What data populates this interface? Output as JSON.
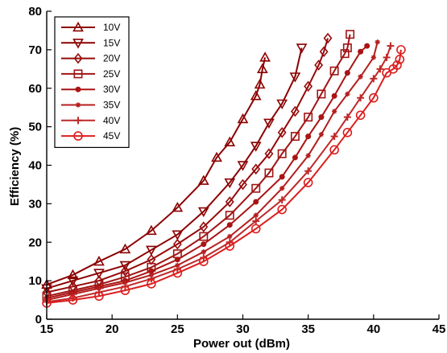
{
  "chart_data": {
    "type": "line",
    "title": "",
    "xlabel": "Power out (dBm)",
    "ylabel": "Efficiency (%)",
    "xlim": [
      15,
      45
    ],
    "ylim": [
      0,
      80
    ],
    "xticks": [
      15,
      20,
      25,
      30,
      35,
      40,
      45
    ],
    "yticks": [
      0,
      10,
      20,
      30,
      40,
      50,
      60,
      70,
      80
    ],
    "grid": false,
    "legend_position": "top-left",
    "series": [
      {
        "name": "10V",
        "marker": "triangle-up",
        "color": "#8b0000",
        "x": [
          15,
          17,
          19,
          21,
          23,
          25,
          27,
          28,
          29,
          30,
          31,
          31.3,
          31.5,
          31.7
        ],
        "y": [
          9,
          11.5,
          15,
          18.2,
          23,
          29,
          36,
          42,
          46,
          52,
          58,
          61,
          65,
          68
        ]
      },
      {
        "name": "15V",
        "marker": "triangle-down",
        "color": "#8b0000",
        "x": [
          15,
          17,
          19,
          21,
          23,
          25,
          27,
          29,
          30,
          31,
          32,
          33,
          34,
          34.5
        ],
        "y": [
          8,
          10,
          12,
          14,
          18,
          22,
          28,
          35.5,
          40,
          45,
          51,
          56,
          63,
          70.5
        ]
      },
      {
        "name": "20V",
        "marker": "diamond",
        "color": "#960a0a",
        "x": [
          15,
          17,
          19,
          21,
          23,
          25,
          27,
          29,
          30,
          31,
          32,
          33,
          34,
          35,
          35.8,
          36.2,
          36.5
        ],
        "y": [
          7,
          8.5,
          10,
          12.5,
          15.5,
          19.5,
          24,
          30.5,
          35,
          39,
          43,
          48.5,
          54,
          60.5,
          66,
          69.5,
          73
        ]
      },
      {
        "name": "25V",
        "marker": "square",
        "color": "#a01414",
        "x": [
          15,
          17,
          19,
          21,
          23,
          25,
          27,
          29,
          31,
          32,
          33,
          34,
          35,
          36,
          37,
          37.8,
          38,
          38.2
        ],
        "y": [
          6,
          7.5,
          9,
          11,
          13.5,
          17,
          21.5,
          27,
          34,
          38,
          43,
          47.5,
          52.5,
          58.5,
          64.5,
          69,
          70.5,
          74
        ]
      },
      {
        "name": "30V",
        "marker": "circle-filled",
        "color": "#aa1414",
        "x": [
          15,
          17,
          19,
          21,
          23,
          25,
          27,
          29,
          31,
          33,
          34,
          35,
          36,
          37,
          38,
          39,
          39.5
        ],
        "y": [
          5.5,
          7,
          8.5,
          10,
          12.5,
          15.5,
          19.5,
          24.5,
          30.5,
          37,
          42,
          47.5,
          52.5,
          58,
          64,
          69.5,
          71
        ]
      },
      {
        "name": "35V",
        "marker": "star",
        "color": "#b41e1e",
        "x": [
          15,
          17,
          19,
          21,
          23,
          25,
          27,
          29,
          31,
          33,
          35,
          36,
          37,
          38,
          39,
          40,
          40.3
        ],
        "y": [
          5,
          6.5,
          8,
          9.5,
          11.5,
          14,
          17.5,
          21.5,
          27,
          34,
          42.5,
          48,
          54,
          58.5,
          63,
          68,
          72
        ]
      },
      {
        "name": "40V",
        "marker": "plus",
        "color": "#be2828",
        "x": [
          15,
          17,
          19,
          21,
          23,
          25,
          27,
          29,
          31,
          33,
          35,
          37,
          38,
          39,
          40,
          40.5,
          41,
          41.3
        ],
        "y": [
          4.5,
          5.5,
          7,
          8.5,
          10.5,
          13,
          16,
          20,
          25.5,
          31,
          38.5,
          47.5,
          52.5,
          57.5,
          62.5,
          65,
          68,
          71
        ]
      },
      {
        "name": "45V",
        "marker": "circle-open",
        "color": "#dc1e1e",
        "x": [
          15,
          17,
          19,
          21,
          23,
          25,
          27,
          29,
          31,
          33,
          35,
          37,
          38,
          39,
          40,
          41,
          41.5,
          41.8,
          42,
          42.1
        ],
        "y": [
          4.2,
          5,
          6,
          7.5,
          9.2,
          12,
          15,
          19,
          23.5,
          28.5,
          35.5,
          44,
          48.5,
          53,
          57.5,
          64,
          65,
          66,
          67.5,
          70
        ]
      }
    ]
  }
}
